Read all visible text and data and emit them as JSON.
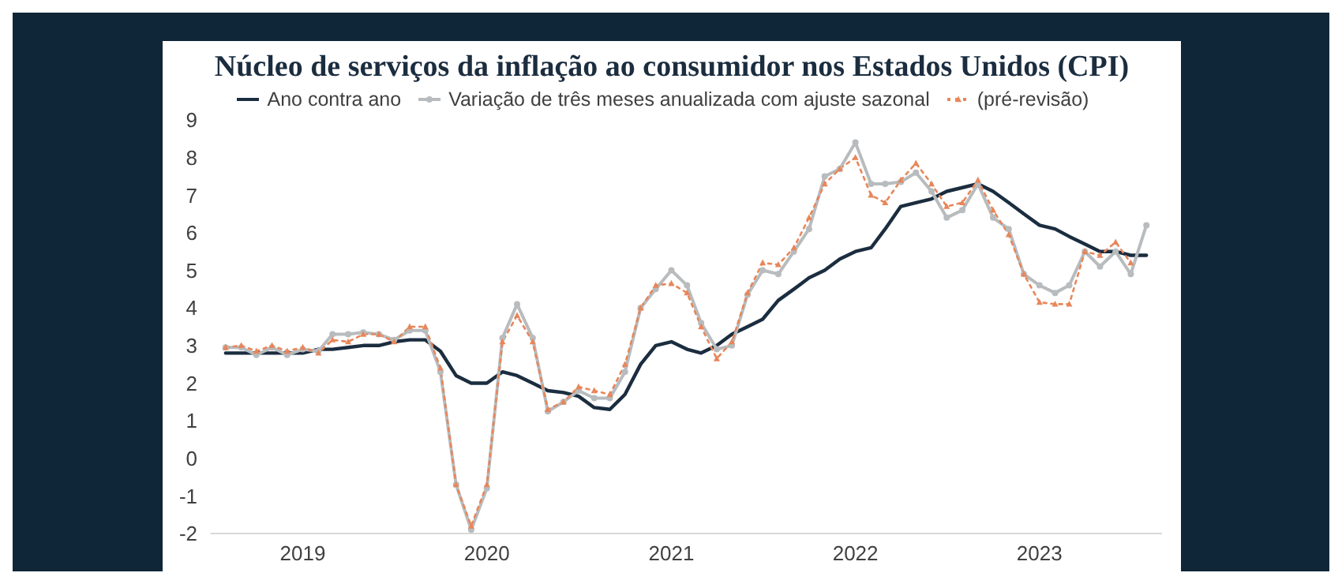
{
  "chart_data": {
    "type": "line",
    "title": "Núcleo de serviços da inflação ao consumidor nos Estados Unidos (CPI)",
    "x": [
      "2018-08",
      "2018-09",
      "2018-10",
      "2018-11",
      "2018-12",
      "2019-01",
      "2019-02",
      "2019-03",
      "2019-04",
      "2019-05",
      "2019-06",
      "2019-07",
      "2019-08",
      "2019-09",
      "2019-10",
      "2019-11",
      "2019-12",
      "2020-01",
      "2020-02",
      "2020-03",
      "2020-04",
      "2020-05",
      "2020-06",
      "2020-07",
      "2020-08",
      "2020-09",
      "2020-10",
      "2020-11",
      "2020-12",
      "2021-01",
      "2021-02",
      "2021-03",
      "2021-04",
      "2021-05",
      "2021-06",
      "2021-07",
      "2021-08",
      "2021-09",
      "2021-10",
      "2021-11",
      "2021-12",
      "2022-01",
      "2022-02",
      "2022-03",
      "2022-04",
      "2022-05",
      "2022-06",
      "2022-07",
      "2022-08",
      "2022-09",
      "2022-10",
      "2022-11",
      "2022-12",
      "2023-01",
      "2023-02",
      "2023-03",
      "2023-04",
      "2023-05",
      "2023-06",
      "2023-07",
      "2023-08"
    ],
    "series": [
      {
        "name": "Ano contra ano",
        "color": "#1b2d3f",
        "marker": "none",
        "line_style": "solid",
        "values": [
          2.8,
          2.8,
          2.8,
          2.8,
          2.8,
          2.8,
          2.9,
          2.9,
          2.95,
          3.0,
          3.0,
          3.1,
          3.15,
          3.15,
          2.85,
          2.2,
          2.0,
          2.0,
          2.3,
          2.2,
          2.0,
          1.8,
          1.75,
          1.65,
          1.35,
          1.3,
          1.7,
          2.5,
          3.0,
          3.1,
          2.9,
          2.8,
          3.0,
          3.3,
          3.5,
          3.7,
          4.2,
          4.5,
          4.8,
          5.0,
          5.3,
          5.5,
          5.6,
          6.1,
          6.7,
          6.8,
          6.9,
          7.1,
          7.2,
          7.3,
          7.1,
          6.8,
          6.5,
          6.2,
          6.1,
          5.9,
          5.7,
          5.5,
          5.5,
          5.4,
          5.4
        ]
      },
      {
        "name": "Variação de três meses anualizada com ajuste sazonal",
        "color": "#b8bcbe",
        "marker": "circle",
        "line_style": "solid",
        "values": [
          2.95,
          2.95,
          2.75,
          2.95,
          2.75,
          2.9,
          2.85,
          3.3,
          3.3,
          3.35,
          3.3,
          3.15,
          3.4,
          3.4,
          2.3,
          -0.7,
          -1.9,
          -0.8,
          3.2,
          4.1,
          3.2,
          1.25,
          1.5,
          1.8,
          1.6,
          1.6,
          2.3,
          4.0,
          4.5,
          5.0,
          4.6,
          3.6,
          2.9,
          3.0,
          4.35,
          5.0,
          4.9,
          5.5,
          6.1,
          7.5,
          7.7,
          8.4,
          7.3,
          7.3,
          7.35,
          7.6,
          7.1,
          6.4,
          6.6,
          7.3,
          6.4,
          6.1,
          4.9,
          4.6,
          4.4,
          4.6,
          5.5,
          5.1,
          5.5,
          4.9,
          6.2
        ]
      },
      {
        "name": "(pré-revisão)",
        "color": "#e8865a",
        "marker": "triangle",
        "line_style": "dotted",
        "values": [
          2.95,
          3.0,
          2.85,
          3.0,
          2.85,
          2.95,
          2.8,
          3.15,
          3.1,
          3.3,
          3.3,
          3.1,
          3.5,
          3.5,
          2.4,
          -0.7,
          -1.8,
          -0.7,
          3.1,
          3.8,
          3.1,
          1.3,
          1.5,
          1.9,
          1.8,
          1.7,
          2.5,
          4.0,
          4.6,
          4.65,
          4.4,
          3.5,
          2.65,
          3.1,
          4.4,
          5.2,
          5.15,
          5.6,
          6.4,
          7.3,
          7.7,
          8.0,
          7.0,
          6.8,
          7.4,
          7.85,
          7.3,
          6.7,
          6.8,
          7.4,
          6.6,
          5.95,
          4.9,
          4.15,
          4.1,
          4.1,
          5.5,
          5.4,
          5.75,
          5.2,
          null
        ]
      }
    ],
    "xlim": [
      "2018-07",
      "2023-09"
    ],
    "xticks": [
      {
        "value": "2019-01",
        "label": "2019"
      },
      {
        "value": "2020-01",
        "label": "2020"
      },
      {
        "value": "2021-01",
        "label": "2021"
      },
      {
        "value": "2022-01",
        "label": "2022"
      },
      {
        "value": "2023-01",
        "label": "2023"
      }
    ],
    "ylim": [
      -2,
      9
    ],
    "yticks": [
      -2,
      -1,
      0,
      1,
      2,
      3,
      4,
      5,
      6,
      7,
      8,
      9
    ],
    "grid": false,
    "legend": "top"
  }
}
